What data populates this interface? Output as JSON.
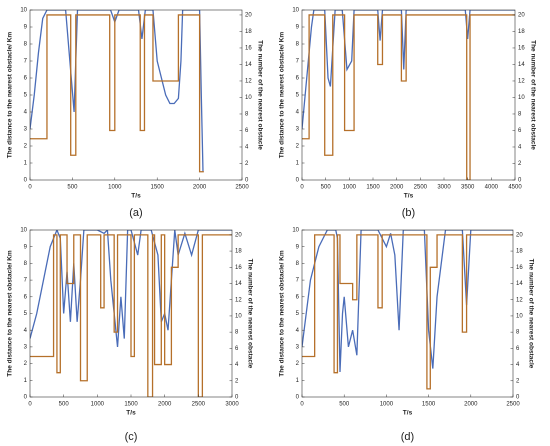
{
  "chart_data": [
    {
      "type": "line",
      "caption": "(a)",
      "x_label": "T/s",
      "y_label": "The distance to the nearest obstacle/ Km",
      "y2_label": "The number of the nearest obstacle",
      "xlim": [
        0,
        2500
      ],
      "xticks": [
        0,
        500,
        1000,
        1500,
        2000,
        2500
      ],
      "ylim": [
        0,
        10
      ],
      "yticks": [
        0,
        1,
        2,
        3,
        4,
        5,
        6,
        7,
        8,
        9,
        10
      ],
      "y2lim": [
        0,
        20.6
      ],
      "y2ticks": [
        0,
        2,
        4,
        6,
        8,
        10,
        12,
        14,
        16,
        18,
        20
      ],
      "series": [
        {
          "color": "#4a6cb8",
          "axis": "y",
          "x": [
            0,
            50,
            100,
            150,
            200,
            420,
            470,
            520,
            560,
            600,
            950,
            1000,
            1050,
            1280,
            1320,
            1360,
            1450,
            1500,
            1600,
            1650,
            1700,
            1750,
            1780,
            1800,
            2000,
            2020,
            2040
          ],
          "values": [
            3,
            5,
            7.5,
            9.5,
            10,
            10,
            7,
            4,
            10,
            10,
            10,
            9.3,
            10,
            10,
            8.3,
            10,
            10,
            7,
            5,
            4.5,
            4.5,
            4.8,
            7,
            10,
            10,
            5,
            0.5
          ]
        },
        {
          "color": "#b5702a",
          "axis": "y2",
          "x": [
            0,
            200,
            200,
            480,
            480,
            540,
            540,
            940,
            940,
            1000,
            1000,
            1300,
            1300,
            1350,
            1350,
            1450,
            1450,
            1750,
            1750,
            2000,
            2000,
            2050
          ],
          "values": [
            5,
            5,
            20,
            20,
            3,
            3,
            20,
            20,
            6,
            6,
            20,
            20,
            6,
            6,
            20,
            20,
            12,
            12,
            20,
            20,
            1,
            1
          ]
        }
      ]
    },
    {
      "type": "line",
      "caption": "(b)",
      "x_label": "T/s",
      "y_label": "The distance to the nearest obstacle/ Km",
      "y2_label": "The number of the nearest obstacle",
      "xlim": [
        0,
        4500
      ],
      "xticks": [
        0,
        500,
        1000,
        1500,
        2000,
        2500,
        3000,
        3500,
        4000,
        4500
      ],
      "ylim": [
        0,
        10
      ],
      "yticks": [
        0,
        1,
        2,
        3,
        4,
        5,
        6,
        7,
        8,
        9,
        10
      ],
      "y2lim": [
        0,
        20.6
      ],
      "y2ticks": [
        0,
        2,
        4,
        6,
        8,
        10,
        12,
        14,
        16,
        18,
        20
      ],
      "series": [
        {
          "color": "#4a6cb8",
          "axis": "y",
          "x": [
            0,
            100,
            200,
            250,
            480,
            550,
            600,
            700,
            850,
            950,
            1050,
            1100,
            1600,
            1650,
            1700,
            2100,
            2150,
            2200,
            3450,
            3500,
            3550,
            4500
          ],
          "values": [
            3,
            6,
            9,
            10,
            10,
            6,
            5.5,
            10,
            10,
            6.5,
            7,
            10,
            10,
            8.2,
            10,
            10,
            6.5,
            10,
            10,
            8.3,
            10,
            10
          ]
        },
        {
          "color": "#b5702a",
          "axis": "y2",
          "x": [
            0,
            150,
            150,
            480,
            480,
            650,
            650,
            900,
            900,
            1100,
            1100,
            1600,
            1600,
            1700,
            1700,
            2100,
            2100,
            2200,
            2200,
            3480,
            3480,
            3550,
            3550,
            4500
          ],
          "values": [
            5,
            5,
            20,
            20,
            3,
            3,
            20,
            20,
            6,
            6,
            20,
            20,
            14,
            14,
            20,
            20,
            12,
            12,
            20,
            20,
            0,
            0,
            20,
            20
          ]
        }
      ]
    },
    {
      "type": "line",
      "caption": "(c)",
      "x_label": "T/s",
      "y_label": "The distance to the nearest obstacle/ Km",
      "y2_label": "The number of the nearest obstacle",
      "xlim": [
        0,
        3000
      ],
      "xticks": [
        0,
        500,
        1000,
        1500,
        2000,
        2500,
        3000
      ],
      "ylim": [
        0,
        10
      ],
      "yticks": [
        0,
        1,
        2,
        3,
        4,
        5,
        6,
        7,
        8,
        9,
        10
      ],
      "y2lim": [
        0,
        20.6
      ],
      "y2ticks": [
        0,
        2,
        4,
        6,
        8,
        10,
        12,
        14,
        16,
        18,
        20
      ],
      "series": [
        {
          "color": "#4a6cb8",
          "axis": "y",
          "x": [
            0,
            100,
            200,
            300,
            400,
            450,
            500,
            550,
            600,
            650,
            700,
            750,
            800,
            900,
            1000,
            1100,
            1150,
            1200,
            1300,
            1350,
            1400,
            1450,
            1500,
            1600,
            1650,
            1700,
            1800,
            1900,
            1950,
            2000,
            2050,
            2100,
            2150,
            2200,
            2300,
            2400,
            2500,
            2600,
            3000
          ],
          "values": [
            3.5,
            5,
            7,
            9,
            10,
            9.5,
            5,
            7.5,
            4.5,
            8,
            4.5,
            7,
            10,
            10,
            10,
            9.8,
            10,
            7,
            3,
            6,
            3.5,
            10,
            10,
            8.5,
            10,
            10,
            10,
            8.5,
            4.5,
            5,
            4,
            7,
            10,
            8.5,
            9.8,
            8.5,
            10,
            10,
            10
          ]
        },
        {
          "color": "#b5702a",
          "axis": "y2",
          "x": [
            0,
            350,
            350,
            400,
            400,
            450,
            450,
            550,
            550,
            650,
            650,
            750,
            750,
            850,
            850,
            1050,
            1050,
            1100,
            1100,
            1250,
            1250,
            1300,
            1300,
            1500,
            1500,
            1550,
            1550,
            1750,
            1750,
            1820,
            1820,
            1850,
            1850,
            1950,
            1950,
            2000,
            2000,
            2100,
            2100,
            2200,
            2200,
            2500,
            2500,
            2560,
            2560,
            3000
          ],
          "values": [
            5,
            5,
            20,
            20,
            3,
            3,
            20,
            20,
            14,
            14,
            20,
            20,
            2,
            2,
            20,
            20,
            11,
            11,
            20,
            20,
            8,
            8,
            20,
            20,
            5,
            5,
            20,
            20,
            0,
            0,
            20,
            20,
            4,
            4,
            20,
            20,
            4,
            4,
            16,
            16,
            20,
            20,
            0,
            0,
            20,
            20
          ]
        }
      ]
    },
    {
      "type": "line",
      "caption": "(d)",
      "x_label": "T/s",
      "y_label": "The distance to the nearest obstacle/ Km",
      "y2_label": "The number of the nearest obstacle",
      "xlim": [
        0,
        2500
      ],
      "xticks": [
        0,
        500,
        1000,
        1500,
        2000,
        2500
      ],
      "ylim": [
        0,
        10
      ],
      "yticks": [
        0,
        1,
        2,
        3,
        4,
        5,
        6,
        7,
        8,
        9,
        10
      ],
      "y2lim": [
        0,
        20.6
      ],
      "y2ticks": [
        0,
        2,
        4,
        6,
        8,
        10,
        12,
        14,
        16,
        18,
        20
      ],
      "series": [
        {
          "color": "#4a6cb8",
          "axis": "y",
          "x": [
            0,
            100,
            200,
            300,
            400,
            420,
            450,
            480,
            500,
            550,
            600,
            650,
            700,
            750,
            900,
            1000,
            1050,
            1100,
            1150,
            1200,
            1300,
            1450,
            1500,
            1550,
            1600,
            1700,
            1800,
            1900,
            1950,
            2000,
            2500
          ],
          "values": [
            3,
            7,
            9,
            10,
            10,
            9.5,
            1.5,
            5,
            6,
            3,
            4,
            2.5,
            10,
            10,
            10,
            9,
            9.8,
            8.5,
            4,
            10,
            10,
            10,
            4,
            1.7,
            6,
            10,
            10,
            10,
            5.5,
            10,
            10
          ]
        },
        {
          "color": "#b5702a",
          "axis": "y2",
          "x": [
            0,
            150,
            150,
            380,
            380,
            420,
            420,
            450,
            450,
            600,
            600,
            650,
            650,
            900,
            900,
            950,
            950,
            1480,
            1480,
            1520,
            1520,
            1600,
            1600,
            1900,
            1900,
            1950,
            1950,
            2500
          ],
          "values": [
            5,
            5,
            20,
            20,
            3,
            3,
            20,
            20,
            14,
            14,
            12,
            12,
            20,
            20,
            11,
            11,
            20,
            20,
            1,
            1,
            16,
            16,
            20,
            20,
            8,
            8,
            20,
            20
          ]
        }
      ]
    }
  ]
}
